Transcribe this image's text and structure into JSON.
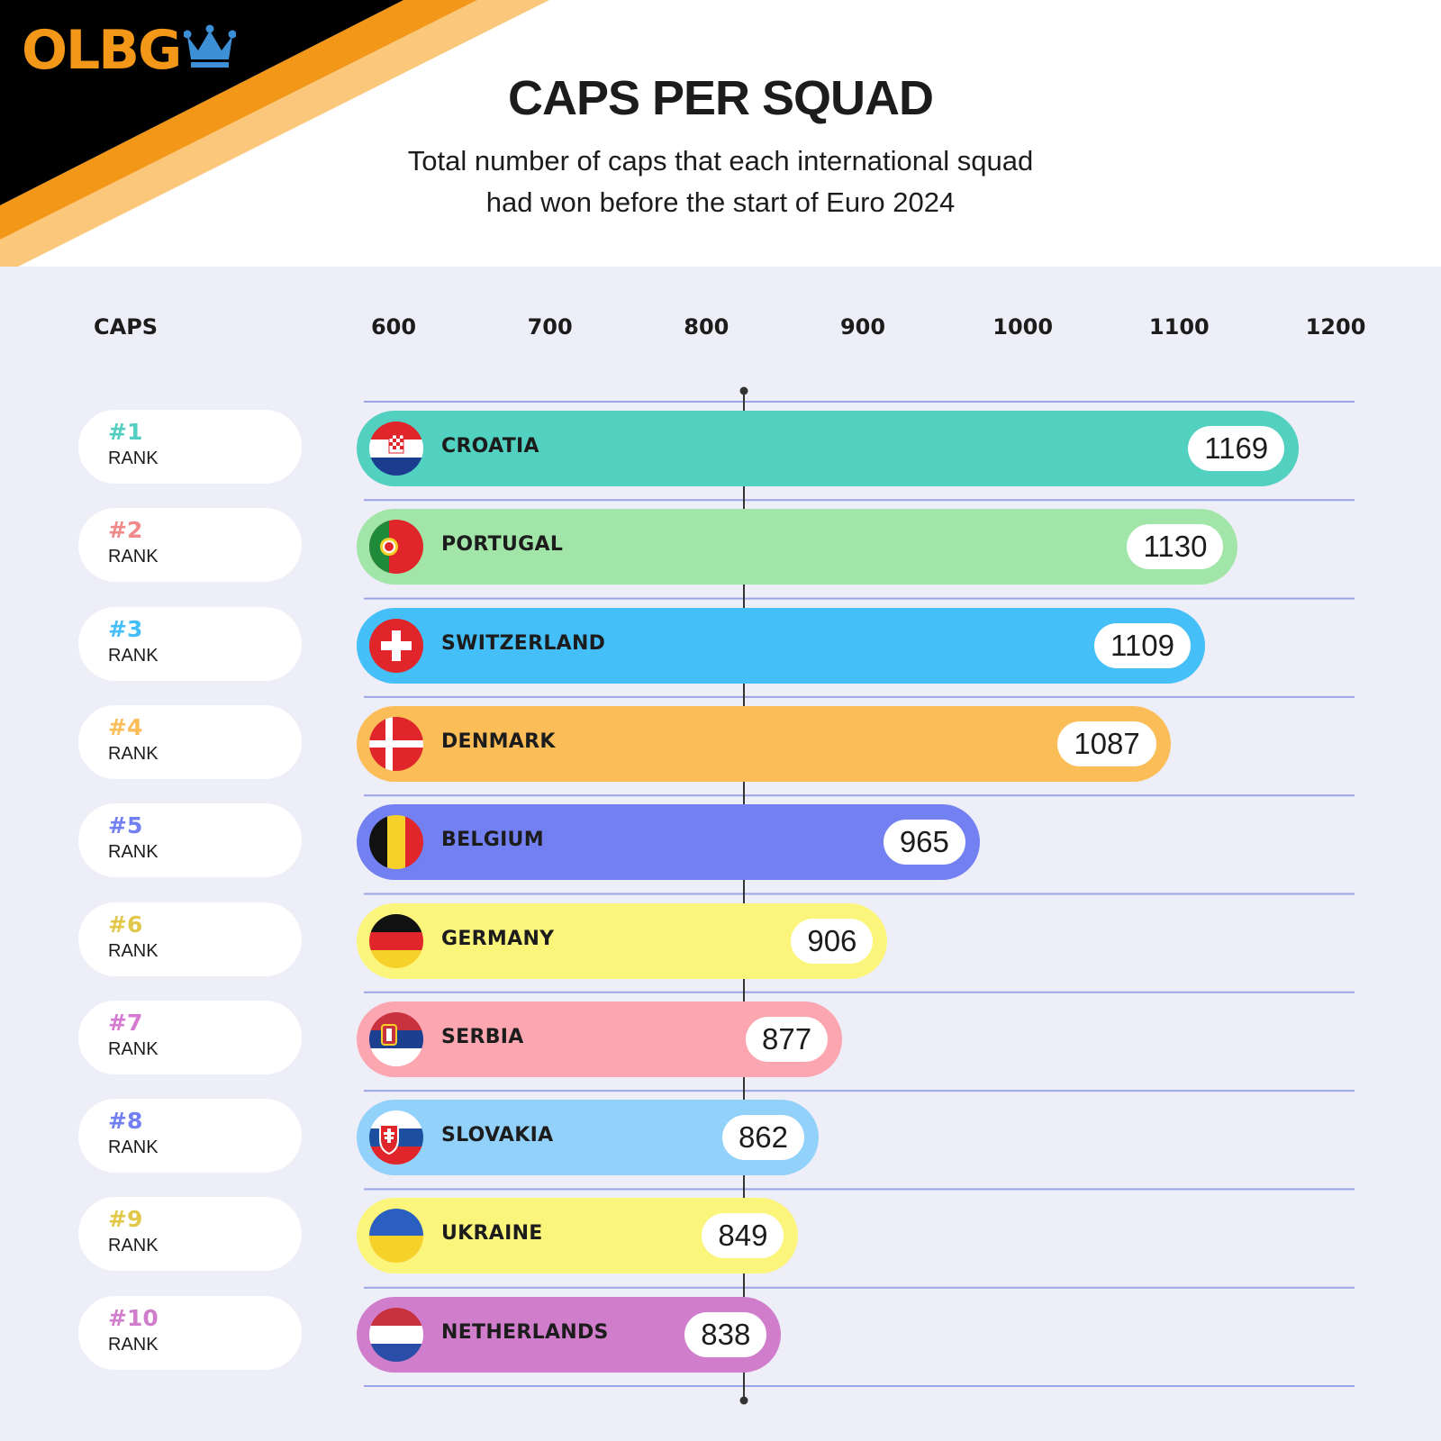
{
  "logo": {
    "text": "OLBG",
    "icon": "crown-icon"
  },
  "header": {
    "title": "CAPS PER SQUAD",
    "subtitle_line1": "Total number of caps that each international squad",
    "subtitle_line2": "had won before the start of Euro 2024"
  },
  "colors": {
    "brand_orange": "#f39719",
    "light_orange": "#fbc77a",
    "black": "#000000",
    "panel": "#eeeef8",
    "gridline": "#9aa4e6",
    "marker": "#333333",
    "crown": "#3d8fd6"
  },
  "chart_data": {
    "type": "bar",
    "orientation": "horizontal",
    "title": "CAPS PER SQUAD",
    "subtitle": "Total number of caps that each international squad had won before the start of Euro 2024",
    "axis_title": "CAPS",
    "xlim": [
      600,
      1200
    ],
    "ticks": [
      600,
      700,
      800,
      900,
      1000,
      1100,
      1200
    ],
    "tick_labels": [
      "600",
      "700",
      "800",
      "900",
      "1000",
      "1100",
      "1200"
    ],
    "reference_line": 824,
    "rank_word": "RANK",
    "rows": [
      {
        "rank": "#1",
        "country": "CROATIA",
        "value": 1169,
        "color": "#52d0c0",
        "rank_color": "#52cfc0",
        "flag": "croatia-flag-icon"
      },
      {
        "rank": "#2",
        "country": "PORTUGAL",
        "value": 1130,
        "color": "#a2e5a8",
        "rank_color": "#f08a8a",
        "flag": "portugal-flag-icon"
      },
      {
        "rank": "#3",
        "country": "SWITZERLAND",
        "value": 1109,
        "color": "#45bff8",
        "rank_color": "#45bff8",
        "flag": "switzerland-flag-icon"
      },
      {
        "rank": "#4",
        "country": "DENMARK",
        "value": 1087,
        "color": "#fbbd57",
        "rank_color": "#fbbd57",
        "flag": "denmark-flag-icon"
      },
      {
        "rank": "#5",
        "country": "BELGIUM",
        "value": 965,
        "color": "#7380f1",
        "rank_color": "#7380f1",
        "flag": "belgium-flag-icon"
      },
      {
        "rank": "#6",
        "country": "GERMANY",
        "value": 906,
        "color": "#fbf57c",
        "rank_color": "#e2c84a",
        "flag": "germany-flag-icon"
      },
      {
        "rank": "#7",
        "country": "SERBIA",
        "value": 877,
        "color": "#fba6b0",
        "rank_color": "#d57ad0",
        "flag": "serbia-flag-icon"
      },
      {
        "rank": "#8",
        "country": "SLOVAKIA",
        "value": 862,
        "color": "#92d1fa",
        "rank_color": "#7380f1",
        "flag": "slovakia-flag-icon"
      },
      {
        "rank": "#9",
        "country": "UKRAINE",
        "value": 849,
        "color": "#fbf57c",
        "rank_color": "#e2c84a",
        "flag": "ukraine-flag-icon"
      },
      {
        "rank": "#10",
        "country": "NETHERLANDS",
        "value": 838,
        "color": "#d07ecc",
        "rank_color": "#d07ecc",
        "flag": "netherlands-flag-icon"
      }
    ]
  }
}
